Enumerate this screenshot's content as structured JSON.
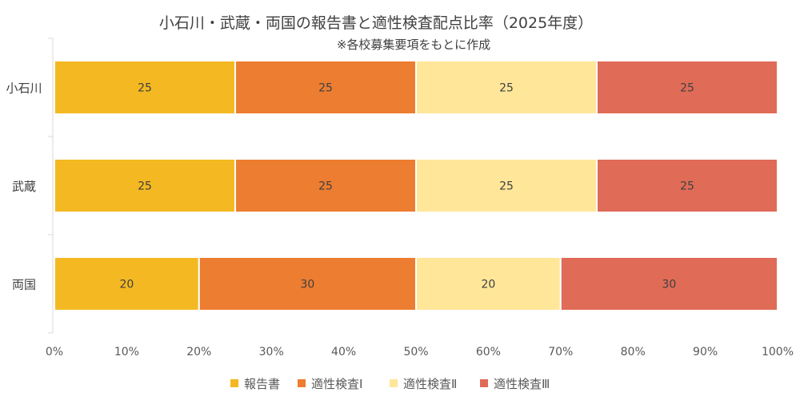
{
  "chart_data": {
    "type": "bar",
    "orientation": "horizontal",
    "stacked": "percent",
    "title": "小石川・武蔵・両国の報告書と適性検査配点比率（2025年度）",
    "subtitle": "※各校募集要項をもとに作成",
    "categories": [
      "小石川",
      "武蔵",
      "両国"
    ],
    "series": [
      {
        "name": "報告書",
        "values": [
          25,
          25,
          20
        ],
        "color": "#F4B922"
      },
      {
        "name": "適性検査Ⅰ",
        "values": [
          25,
          25,
          30
        ],
        "color": "#ED7D31"
      },
      {
        "name": "適性検査Ⅱ",
        "values": [
          25,
          25,
          20
        ],
        "color": "#FFE699"
      },
      {
        "name": "適性検査Ⅲ",
        "values": [
          25,
          25,
          30
        ],
        "color": "#E06B57"
      }
    ],
    "xticks": [
      "0%",
      "10%",
      "20%",
      "30%",
      "40%",
      "50%",
      "60%",
      "70%",
      "80%",
      "90%",
      "100%"
    ],
    "xlim": [
      0,
      100
    ],
    "xlabel": "",
    "ylabel": "",
    "grid": false,
    "legend": "bottom"
  }
}
